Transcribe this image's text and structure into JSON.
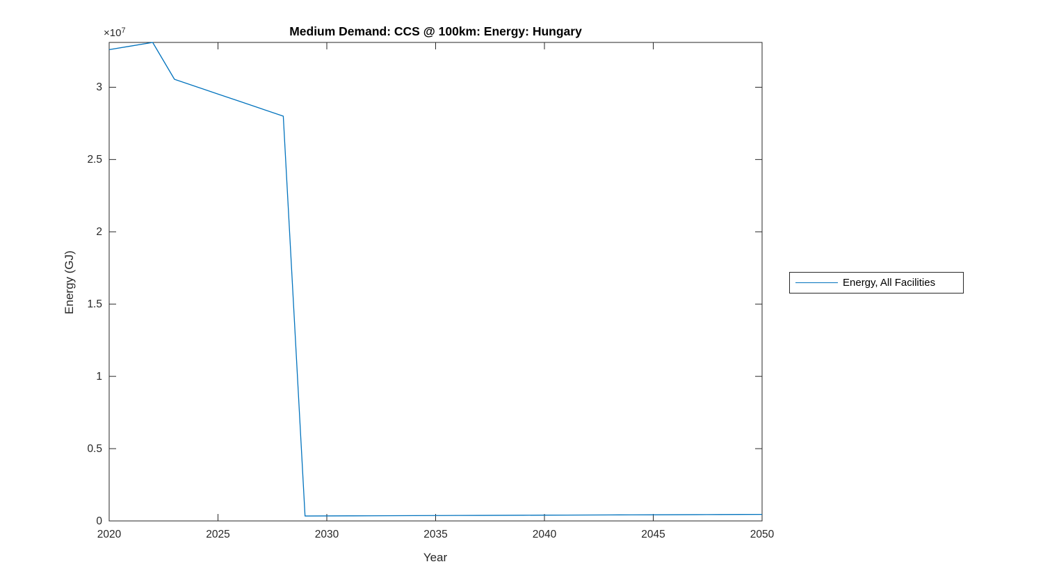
{
  "figure": {
    "title": "Medium Demand: CCS @ 100km: Energy: Hungary",
    "xlabel": "Year",
    "ylabel": "Energy (GJ)",
    "exponent_base": "×10",
    "exponent_power": "7",
    "legend": {
      "entries": [
        {
          "label": "Energy, All Facilities",
          "color": "#0072BD"
        }
      ],
      "position": "right-outside"
    }
  },
  "colors": {
    "line": "#0072BD",
    "axis": "#262626",
    "tick_text": "#262626",
    "title_text": "#000000",
    "background": "#ffffff"
  },
  "chart_data": {
    "type": "line",
    "title": "Medium Demand: CCS @ 100km: Energy: Hungary",
    "xlabel": "Year",
    "ylabel": "Energy (GJ)",
    "grid": false,
    "legend_position": "eastoutside",
    "xlim": [
      2020,
      2050
    ],
    "ylim": [
      0,
      33100000
    ],
    "xticks": [
      2020,
      2025,
      2030,
      2035,
      2040,
      2045,
      2050
    ],
    "yticks": [
      0,
      5000000,
      10000000,
      15000000,
      20000000,
      25000000,
      30000000
    ],
    "ytick_labels": [
      "0",
      "0.5",
      "1",
      "1.5",
      "2",
      "2.5",
      "3"
    ],
    "y_axis_multiplier": 10000000,
    "series": [
      {
        "name": "Energy, All Facilities",
        "color": "#0072BD",
        "x": [
          2020,
          2021,
          2022,
          2023,
          2024,
          2025,
          2026,
          2027,
          2028,
          2029,
          2030,
          2031,
          2032,
          2033,
          2034,
          2035,
          2036,
          2037,
          2038,
          2039,
          2040,
          2041,
          2042,
          2043,
          2044,
          2045,
          2046,
          2047,
          2048,
          2049,
          2050
        ],
        "y": [
          32600000,
          32850000,
          33100000,
          30550000,
          30040000,
          29530000,
          29020000,
          28510000,
          28000000,
          340000,
          345000,
          351000,
          356000,
          361000,
          367000,
          372000,
          377000,
          383000,
          388000,
          393000,
          399000,
          404000,
          409000,
          415000,
          420000,
          425000,
          431000,
          436000,
          441000,
          447000,
          452000
        ]
      }
    ]
  }
}
